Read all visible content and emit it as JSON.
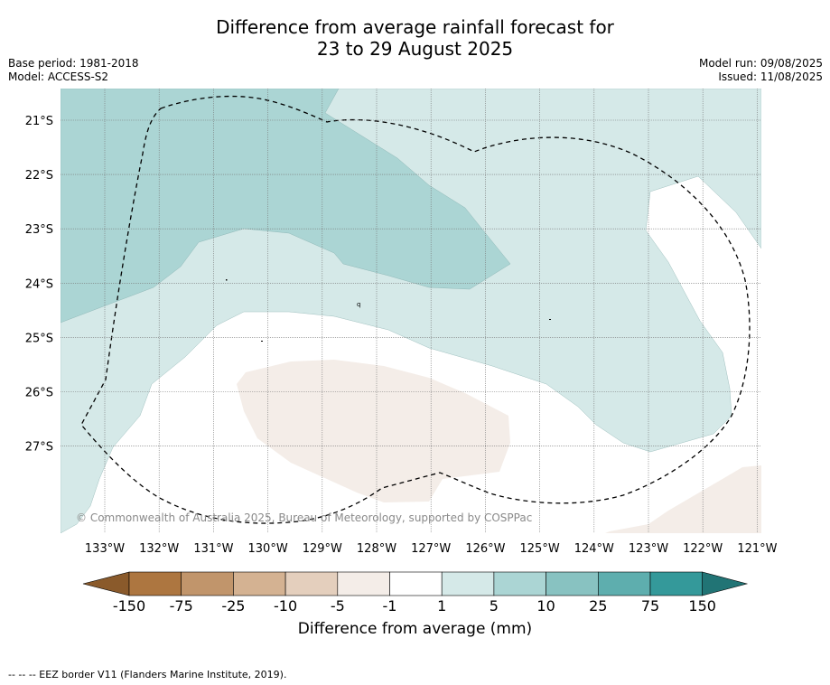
{
  "header": {
    "title_line1": "Difference from average rainfall forecast for",
    "title_line2": "23 to 29 August 2025",
    "base_period": "Base period: 1981-2018",
    "model": "Model: ACCESS-S2",
    "model_run": "Model run: 09/08/2025",
    "issued": "Issued: 11/08/2025"
  },
  "map": {
    "latitude_labels": [
      "21°S",
      "22°S",
      "23°S",
      "24°S",
      "25°S",
      "26°S",
      "27°S"
    ],
    "longitude_labels": [
      "133°W",
      "132°W",
      "131°W",
      "130°W",
      "129°W",
      "128°W",
      "127°W",
      "126°W",
      "125°W",
      "124°W",
      "123°W",
      "122°W",
      "121°W"
    ],
    "copyright": "© Commonwealth of Australia 2025, Bureau of Meteorology, supported by COSPPac",
    "colors": {
      "band_1_5": "#d5e9e8",
      "band_5_10": "#abd5d4",
      "band_-5_-1": "#f4ede8",
      "background": "#ffffff"
    }
  },
  "colorbar": {
    "tick_labels": [
      "-150",
      "-75",
      "-25",
      "-10",
      "-5",
      "-1",
      "1",
      "5",
      "10",
      "25",
      "75",
      "150"
    ],
    "colors": [
      "#8a5a2b",
      "#ad7640",
      "#c1956b",
      "#d4b292",
      "#e4cfbd",
      "#f4ede8",
      "#ffffff",
      "#d5e9e8",
      "#abd5d4",
      "#88c2c1",
      "#5eaeae",
      "#34999a",
      "#217475"
    ],
    "label": "Difference from average (mm)"
  },
  "footnote": "-- -- -- EEZ border V11 (Flanders Marine Institute, 2019)."
}
